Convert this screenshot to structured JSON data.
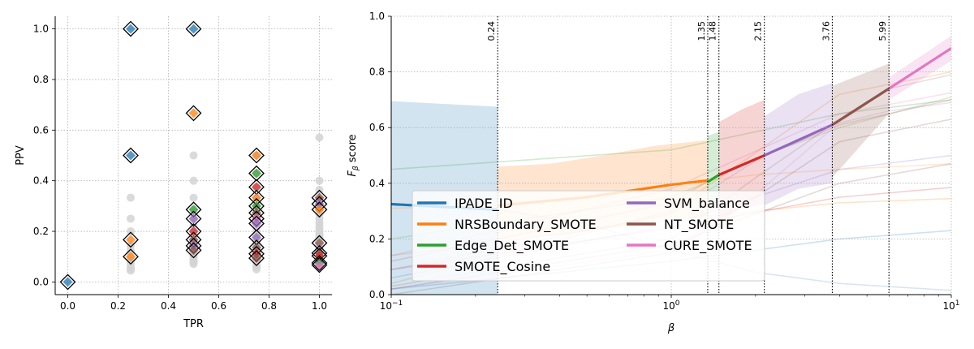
{
  "chart_data": [
    {
      "type": "scatter",
      "xlabel": "TPR",
      "ylabel": "PPV",
      "xlim": [
        -0.05,
        1.05
      ],
      "ylim": [
        -0.05,
        1.05
      ],
      "xticks": [
        0.0,
        0.2,
        0.4,
        0.6,
        0.8,
        1.0
      ],
      "xtick_labels": [
        "0.0",
        "0.2",
        "0.4",
        "0.6",
        "0.8",
        "1.0"
      ],
      "yticks": [
        0.0,
        0.2,
        0.4,
        0.6,
        0.8,
        1.0
      ],
      "ytick_labels": [
        "0.0",
        "0.2",
        "0.4",
        "0.6",
        "0.8",
        "1.0"
      ],
      "grid": true,
      "background_points": [
        [
          0.25,
          0.333
        ],
        [
          0.25,
          0.25
        ],
        [
          0.25,
          0.2
        ],
        [
          0.25,
          0.143
        ],
        [
          0.25,
          0.125
        ],
        [
          0.25,
          0.111
        ],
        [
          0.25,
          0.091
        ],
        [
          0.25,
          0.083
        ],
        [
          0.25,
          0.071
        ],
        [
          0.25,
          0.059
        ],
        [
          0.25,
          0.05
        ],
        [
          0.25,
          0.045
        ],
        [
          0.5,
          0.5
        ],
        [
          0.5,
          0.4
        ],
        [
          0.5,
          0.333
        ],
        [
          0.5,
          0.286
        ],
        [
          0.5,
          0.25
        ],
        [
          0.5,
          0.222
        ],
        [
          0.5,
          0.2
        ],
        [
          0.5,
          0.182
        ],
        [
          0.5,
          0.167
        ],
        [
          0.5,
          0.154
        ],
        [
          0.5,
          0.143
        ],
        [
          0.5,
          0.133
        ],
        [
          0.5,
          0.125
        ],
        [
          0.5,
          0.118
        ],
        [
          0.5,
          0.111
        ],
        [
          0.5,
          0.105
        ],
        [
          0.5,
          0.1
        ],
        [
          0.5,
          0.091
        ],
        [
          0.5,
          0.083
        ],
        [
          0.5,
          0.077
        ],
        [
          0.5,
          0.071
        ],
        [
          0.75,
          0.5
        ],
        [
          0.75,
          0.429
        ],
        [
          0.75,
          0.375
        ],
        [
          0.75,
          0.333
        ],
        [
          0.75,
          0.3
        ],
        [
          0.75,
          0.273
        ],
        [
          0.75,
          0.25
        ],
        [
          0.75,
          0.231
        ],
        [
          0.75,
          0.214
        ],
        [
          0.75,
          0.2
        ],
        [
          0.75,
          0.188
        ],
        [
          0.75,
          0.176
        ],
        [
          0.75,
          0.167
        ],
        [
          0.75,
          0.158
        ],
        [
          0.75,
          0.15
        ],
        [
          0.75,
          0.143
        ],
        [
          0.75,
          0.136
        ],
        [
          0.75,
          0.13
        ],
        [
          0.75,
          0.12
        ],
        [
          0.75,
          0.111
        ],
        [
          0.75,
          0.1
        ],
        [
          0.75,
          0.094
        ],
        [
          0.75,
          0.083
        ],
        [
          0.75,
          0.075
        ],
        [
          0.75,
          0.068
        ],
        [
          0.75,
          0.06
        ],
        [
          0.75,
          0.05
        ],
        [
          1.0,
          0.571
        ],
        [
          1.0,
          0.4
        ],
        [
          1.0,
          0.364
        ],
        [
          1.0,
          0.333
        ],
        [
          1.0,
          0.308
        ],
        [
          1.0,
          0.286
        ],
        [
          1.0,
          0.267
        ],
        [
          1.0,
          0.25
        ],
        [
          1.0,
          0.235
        ],
        [
          1.0,
          0.222
        ],
        [
          1.0,
          0.211
        ],
        [
          1.0,
          0.2
        ],
        [
          1.0,
          0.19
        ],
        [
          1.0,
          0.182
        ],
        [
          1.0,
          0.174
        ],
        [
          1.0,
          0.167
        ],
        [
          1.0,
          0.16
        ],
        [
          1.0,
          0.154
        ],
        [
          1.0,
          0.148
        ],
        [
          1.0,
          0.143
        ],
        [
          1.0,
          0.138
        ],
        [
          1.0,
          0.133
        ],
        [
          1.0,
          0.129
        ],
        [
          1.0,
          0.121
        ],
        [
          1.0,
          0.114
        ],
        [
          1.0,
          0.108
        ],
        [
          1.0,
          0.103
        ],
        [
          1.0,
          0.098
        ],
        [
          1.0,
          0.093
        ],
        [
          1.0,
          0.089
        ],
        [
          1.0,
          0.085
        ],
        [
          1.0,
          0.08
        ],
        [
          1.0,
          0.075
        ],
        [
          1.0,
          0.07
        ],
        [
          1.0,
          0.065
        ],
        [
          1.0,
          0.06
        ]
      ],
      "highlighted_points": [
        {
          "x": 0.0,
          "y": 0.0,
          "color": "#1f77b4"
        },
        {
          "x": 0.25,
          "y": 1.0,
          "color": "#1f77b4"
        },
        {
          "x": 0.5,
          "y": 1.0,
          "color": "#1f77b4"
        },
        {
          "x": 0.25,
          "y": 0.5,
          "color": "#1f77b4"
        },
        {
          "x": 0.5,
          "y": 0.667,
          "color": "#ff7f0e"
        },
        {
          "x": 0.25,
          "y": 0.167,
          "color": "#ff7f0e"
        },
        {
          "x": 0.25,
          "y": 0.1,
          "color": "#ff7f0e"
        },
        {
          "x": 0.5,
          "y": 0.286,
          "color": "#2ca02c"
        },
        {
          "x": 0.5,
          "y": 0.25,
          "color": "#9467bd"
        },
        {
          "x": 0.5,
          "y": 0.2,
          "color": "#d62728"
        },
        {
          "x": 0.5,
          "y": 0.167,
          "color": "#8c564b"
        },
        {
          "x": 0.5,
          "y": 0.143,
          "color": "#9467bd"
        },
        {
          "x": 0.5,
          "y": 0.125,
          "color": "#8c564b"
        },
        {
          "x": 0.75,
          "y": 0.5,
          "color": "#ff7f0e"
        },
        {
          "x": 0.75,
          "y": 0.429,
          "color": "#2ca02c"
        },
        {
          "x": 0.75,
          "y": 0.375,
          "color": "#d62728"
        },
        {
          "x": 0.75,
          "y": 0.333,
          "color": "#ff7f0e"
        },
        {
          "x": 0.75,
          "y": 0.3,
          "color": "#2ca02c"
        },
        {
          "x": 0.75,
          "y": 0.273,
          "color": "#8c564b"
        },
        {
          "x": 0.75,
          "y": 0.25,
          "color": "#e377c2"
        },
        {
          "x": 0.75,
          "y": 0.231,
          "color": "#9467bd"
        },
        {
          "x": 0.75,
          "y": 0.176,
          "color": "#9467bd"
        },
        {
          "x": 0.75,
          "y": 0.136,
          "color": "#8c564b"
        },
        {
          "x": 0.75,
          "y": 0.111,
          "color": "#d62728"
        },
        {
          "x": 0.75,
          "y": 0.094,
          "color": "#8c564b"
        },
        {
          "x": 1.0,
          "y": 0.333,
          "color": "#8c564b"
        },
        {
          "x": 1.0,
          "y": 0.308,
          "color": "#9467bd"
        },
        {
          "x": 1.0,
          "y": 0.286,
          "color": "#ff7f0e"
        },
        {
          "x": 1.0,
          "y": 0.154,
          "color": "#8c564b"
        },
        {
          "x": 1.0,
          "y": 0.114,
          "color": "#8c564b"
        },
        {
          "x": 1.0,
          "y": 0.103,
          "color": "#d62728"
        },
        {
          "x": 1.0,
          "y": 0.075,
          "color": "#2ca02c"
        },
        {
          "x": 1.0,
          "y": 0.067,
          "color": "#e377c2"
        }
      ]
    },
    {
      "type": "line",
      "xscale": "log",
      "xlabel": "β",
      "ylabel_prefix": "F",
      "ylabel_subscript": "β",
      "ylabel_suffix": " score",
      "xlim": [
        0.1,
        10
      ],
      "ylim": [
        0.0,
        1.0
      ],
      "xticks": [
        0.1,
        1,
        10
      ],
      "xtick_labels": [
        "10",
        "10",
        "10"
      ],
      "xtick_exponents": [
        "−1",
        "0",
        "1"
      ],
      "yticks": [
        0.0,
        0.2,
        0.4,
        0.6,
        0.8,
        1.0
      ],
      "ytick_labels": [
        "0.0",
        "0.2",
        "0.4",
        "0.6",
        "0.8",
        "1.0"
      ],
      "grid": true,
      "legend_location": "lower left",
      "thresholds": [
        {
          "beta": 0.24,
          "label": "0.24"
        },
        {
          "beta": 1.35,
          "label": "1.35"
        },
        {
          "beta": 1.48,
          "label": "1.48"
        },
        {
          "beta": 2.15,
          "label": "2.15"
        },
        {
          "beta": 3.76,
          "label": "3.76"
        },
        {
          "beta": 5.99,
          "label": "5.99"
        }
      ],
      "series": [
        {
          "name": "IPADE_ID",
          "color": "#1f77b4",
          "best_range": [
            0.1,
            0.24
          ],
          "beta": [
            0.1,
            0.24,
            0.5,
            1,
            2,
            4,
            10
          ],
          "f": [
            0.325,
            0.305,
            0.255,
            0.16,
            0.08,
            0.04,
            0.015
          ],
          "band_upper": [
            0.695,
            0.675
          ],
          "band_lower": [
            0.0,
            0.0
          ]
        },
        {
          "name": "NRSBoundary_SMOTE",
          "color": "#ff7f0e",
          "best_range": [
            0.24,
            1.35
          ],
          "beta": [
            0.1,
            0.24,
            0.5,
            1,
            1.35,
            2,
            4,
            10
          ],
          "f": [
            0.31,
            0.32,
            0.35,
            0.395,
            0.41,
            0.43,
            0.45,
            0.47
          ],
          "band_upper": [
            0.46,
            0.47,
            0.5,
            0.535,
            0.555
          ],
          "band_lower": [
            0.2,
            0.21,
            0.235,
            0.27,
            0.285
          ]
        },
        {
          "name": "Edge_Det_SMOTE",
          "color": "#2ca02c",
          "best_range": [
            1.35,
            1.48
          ],
          "beta": [
            0.1,
            1,
            1.35,
            1.48,
            2,
            4,
            10
          ],
          "f": [
            0.2,
            0.35,
            0.405,
            0.43,
            0.49,
            0.6,
            0.71
          ],
          "band_upper": [
            0.57,
            0.585
          ],
          "band_lower": [
            0.32,
            0.33
          ]
        },
        {
          "name": "SMOTE_Cosine",
          "color": "#d62728",
          "best_range": [
            1.48,
            2.15
          ],
          "beta": [
            0.1,
            1,
            1.48,
            2.15,
            4,
            10
          ],
          "f": [
            0.12,
            0.33,
            0.43,
            0.5,
            0.61,
            0.7
          ],
          "band_upper": [
            0.62,
            0.665,
            0.7
          ],
          "band_lower": [
            0.27,
            0.31,
            0.325
          ]
        },
        {
          "name": "SVM_balance",
          "color": "#9467bd",
          "best_range": [
            2.15,
            3.76
          ],
          "beta": [
            0.1,
            1,
            2.15,
            3.76,
            6,
            10
          ],
          "f": [
            0.09,
            0.29,
            0.5,
            0.61,
            0.66,
            0.69
          ],
          "band_upper": [
            0.64,
            0.72,
            0.76
          ],
          "band_lower": [
            0.32,
            0.38,
            0.4
          ]
        },
        {
          "name": "NT_SMOTE",
          "color": "#8c564b",
          "best_range": [
            3.76,
            5.99
          ],
          "beta": [
            0.1,
            1,
            2,
            3.76,
            5.99,
            10
          ],
          "f": [
            0.03,
            0.2,
            0.42,
            0.61,
            0.74,
            0.79
          ],
          "band_upper": [
            0.75,
            0.83
          ],
          "band_lower": [
            0.42,
            0.65
          ]
        },
        {
          "name": "CURE_SMOTE",
          "color": "#e377c2",
          "best_range": [
            5.99,
            10
          ],
          "beta": [
            0.1,
            1,
            2,
            4,
            5.99,
            10
          ],
          "f": [
            0.02,
            0.16,
            0.36,
            0.62,
            0.74,
            0.885
          ],
          "band_upper": [
            0.78,
            0.93
          ],
          "band_lower": [
            0.7,
            0.84
          ]
        }
      ],
      "background_curves": [
        {
          "color": "#1f77b4",
          "beta": [
            0.1,
            1,
            4,
            10
          ],
          "f": [
            0.02,
            0.12,
            0.2,
            0.23
          ]
        },
        {
          "color": "#ff7f0e",
          "beta": [
            0.1,
            1,
            4,
            10
          ],
          "f": [
            0.14,
            0.27,
            0.33,
            0.345
          ]
        },
        {
          "color": "#d62728",
          "beta": [
            0.1,
            1,
            4,
            10
          ],
          "f": [
            0.09,
            0.24,
            0.35,
            0.385
          ]
        },
        {
          "color": "#9467bd",
          "beta": [
            0.1,
            1,
            4,
            10
          ],
          "f": [
            0.06,
            0.25,
            0.45,
            0.5
          ]
        },
        {
          "color": "#8c564b",
          "beta": [
            0.1,
            1,
            4,
            10
          ],
          "f": [
            0.02,
            0.18,
            0.4,
            0.47
          ]
        },
        {
          "color": "#2ca02c",
          "beta": [
            0.1,
            1,
            4,
            10
          ],
          "f": [
            0.45,
            0.52,
            0.65,
            0.7
          ]
        },
        {
          "color": "#e377c2",
          "beta": [
            0.1,
            1,
            4,
            10
          ],
          "f": [
            0.14,
            0.38,
            0.65,
            0.725
          ]
        },
        {
          "color": "#ff7f0e",
          "beta": [
            0.1,
            1,
            4,
            10
          ],
          "f": [
            0.04,
            0.3,
            0.72,
            0.8
          ]
        },
        {
          "color": "#8c564b",
          "beta": [
            0.1,
            1,
            4,
            10
          ],
          "f": [
            0.0,
            0.15,
            0.55,
            0.63
          ]
        }
      ]
    }
  ]
}
